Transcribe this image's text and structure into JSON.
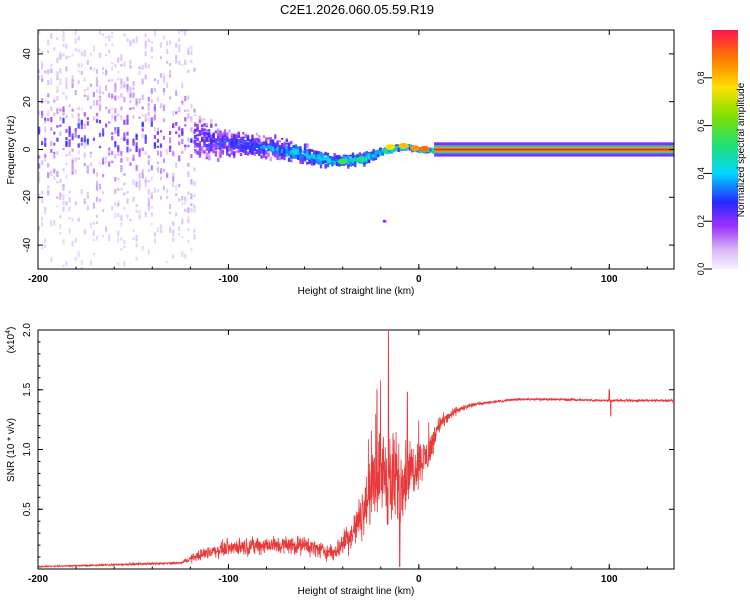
{
  "figure_title": "C2E1.2026.060.05.59.R19",
  "chart_data": [
    {
      "type": "heatmap",
      "title": "C2E1.2026.060.05.59.R19",
      "xlabel": "Height of straight line (km)",
      "ylabel": "Frequency (Hz)",
      "xlim": [
        -200,
        134
      ],
      "ylim": [
        -50,
        50
      ],
      "x_ticks": [
        -200,
        -100,
        0,
        100
      ],
      "y_ticks": [
        -40,
        -20,
        0,
        20,
        40
      ],
      "colorbar": {
        "label": "Normalized spectral amplitude",
        "range": [
          0,
          1
        ],
        "ticks": [
          "0.0",
          "0.2",
          "0.4",
          "0.6",
          "0.8"
        ]
      },
      "ridge": {
        "x": [
          -200,
          -150,
          -120,
          -100,
          -80,
          -60,
          -45,
          -30,
          -20,
          -12,
          -5,
          0,
          10,
          20,
          134
        ],
        "y": [
          7,
          6,
          5,
          3,
          1,
          -2,
          -5,
          -4,
          -1,
          1,
          1,
          0,
          0,
          0,
          0
        ],
        "spread_hz": [
          45,
          40,
          12,
          8,
          6,
          5,
          3,
          3,
          2,
          1,
          1,
          0.5,
          0.5,
          0.5,
          0.5
        ]
      },
      "stray_points": [
        {
          "x": -18,
          "y": -30
        }
      ]
    },
    {
      "type": "line",
      "xlabel": "Height of straight line (km)",
      "ylabel": "SNR (10 * v/v)",
      "y_scale_label": "(x10",
      "y_scale_exponent": "4",
      "xlim": [
        -200,
        134
      ],
      "ylim": [
        0,
        2.0
      ],
      "x_ticks": [
        -200,
        -100,
        0,
        100
      ],
      "y_ticks": [
        "0.5",
        "1.0",
        "1.5",
        "2.0"
      ],
      "series": [
        {
          "name": "SNR",
          "color": "#e83a3a",
          "x": [
            -200,
            -150,
            -125,
            -115,
            -100,
            -80,
            -60,
            -45,
            -35,
            -30,
            -25,
            -20,
            -15,
            -10,
            -5,
            0,
            5,
            10,
            20,
            30,
            50,
            70,
            100,
            120,
            134
          ],
          "values": [
            0.02,
            0.04,
            0.05,
            0.12,
            0.18,
            0.2,
            0.2,
            0.13,
            0.3,
            0.45,
            0.65,
            0.85,
            0.7,
            0.75,
            0.8,
            0.9,
            0.95,
            1.2,
            1.33,
            1.38,
            1.42,
            1.42,
            1.41,
            1.41,
            1.41
          ],
          "noise": [
            0.005,
            0.01,
            0.01,
            0.05,
            0.07,
            0.08,
            0.08,
            0.07,
            0.15,
            0.2,
            0.25,
            0.35,
            0.45,
            0.4,
            0.3,
            0.2,
            0.15,
            0.08,
            0.03,
            0.015,
            0.01,
            0.01,
            0.01,
            0.01,
            0.01
          ],
          "peaks": [
            {
              "x": -16,
              "y": 2.0
            },
            {
              "x": -22,
              "y": 1.5
            },
            {
              "x": -6,
              "y": 1.48
            },
            {
              "x": 100,
              "y": 1.5
            },
            {
              "x": 100.8,
              "y": 1.28
            }
          ],
          "min_dip": {
            "x": -10,
            "y": 0.02
          }
        }
      ]
    }
  ]
}
